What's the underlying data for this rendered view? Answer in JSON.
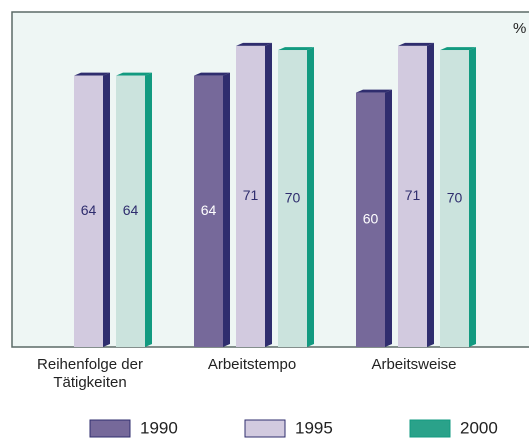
{
  "chart_data": {
    "type": "bar",
    "y_label": "%",
    "categories": [
      "Reihenfolge der Tätigkeiten",
      "Arbeitstempo",
      "Arbeitsweise"
    ],
    "series": [
      {
        "name": "1990",
        "color": "#76699a",
        "side_color": "#2f2d6e",
        "label_color": "#ffffff",
        "values": [
          null,
          64,
          60
        ]
      },
      {
        "name": "1995",
        "color": "#d2cadf",
        "side_color": "#2f2d6e",
        "label_color": "#2f2d6e",
        "values": [
          64,
          71,
          71
        ]
      },
      {
        "name": "2000",
        "color": "#cbe3dd",
        "side_color": "#129a80",
        "label_color": "#2f2d6e",
        "legend_color": "#2aa28a",
        "values": [
          64,
          70,
          70
        ]
      }
    ],
    "ylim": [
      0,
      79
    ]
  }
}
